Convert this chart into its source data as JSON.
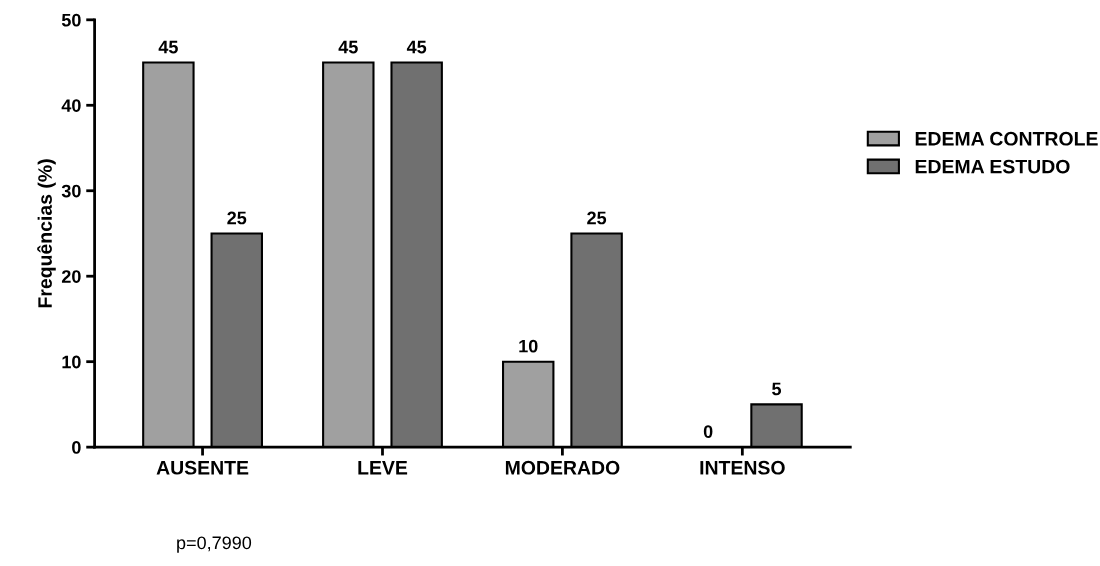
{
  "chart_data": {
    "type": "bar",
    "ylabel": "Frequências (%)",
    "categories": [
      "AUSENTE",
      "LEVE",
      "MODERADO",
      "INTENSO"
    ],
    "series": [
      {
        "name": "EDEMA CONTROLE",
        "color": "#a0a0a0",
        "values": [
          45,
          45,
          10,
          0
        ]
      },
      {
        "name": "EDEMA ESTUDO",
        "color": "#707070",
        "values": [
          25,
          45,
          25,
          5
        ]
      }
    ],
    "ylim": [
      0,
      50
    ],
    "yticks": [
      0,
      10,
      20,
      30,
      40,
      50
    ],
    "grid": false,
    "legend": "right",
    "data_labels": true,
    "annotations": [
      "p=0,7990"
    ]
  }
}
